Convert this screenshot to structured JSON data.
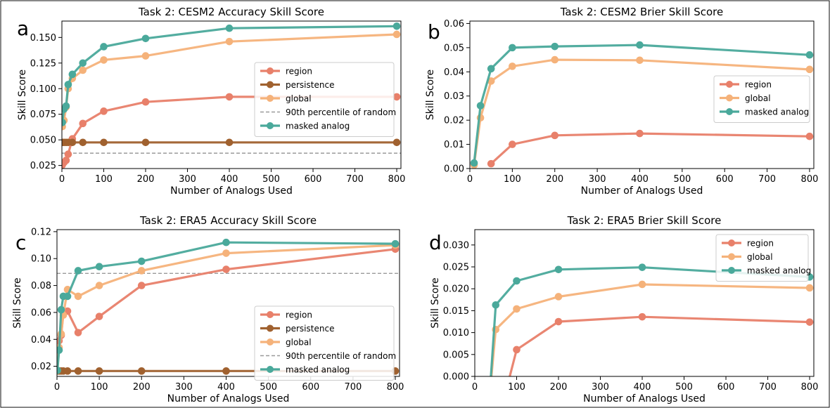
{
  "chart_data": [
    {
      "panel_letter": "a",
      "type": "line",
      "title": "Task 2: CESM2 Accuracy Skill Score",
      "xlabel": "Number of Analogs Used",
      "ylabel": "Skill Score",
      "xlim": [
        0,
        810
      ],
      "ylim": [
        0.022,
        0.166
      ],
      "xticks": [
        0,
        100,
        200,
        300,
        400,
        500,
        600,
        700,
        800
      ],
      "yticks": [
        0.025,
        0.05,
        0.075,
        0.1,
        0.125,
        0.15
      ],
      "ytick_labels": [
        "0.025",
        "0.050",
        "0.075",
        "0.100",
        "0.125",
        "0.150"
      ],
      "legend_position": "center-right",
      "legend": [
        "region",
        "persistence",
        "global",
        "90th percentile of random",
        "masked analog"
      ],
      "reference_line": {
        "name": "90th percentile of random",
        "value": 0.037
      },
      "series": [
        {
          "name": "region",
          "color": "#e8806a",
          "x": [
            1,
            5,
            10,
            15,
            25,
            50,
            100,
            200,
            400,
            800
          ],
          "y": [
            0.0255,
            0.028,
            0.03,
            0.036,
            0.051,
            0.066,
            0.078,
            0.087,
            0.092,
            0.092
          ]
        },
        {
          "name": "persistence",
          "color": "#a0612f",
          "x": [
            1,
            5,
            10,
            15,
            25,
            50,
            100,
            200,
            400,
            800
          ],
          "y": [
            0.0475,
            0.0475,
            0.0475,
            0.0475,
            0.0475,
            0.0475,
            0.0475,
            0.0475,
            0.0475,
            0.0475
          ]
        },
        {
          "name": "global",
          "color": "#f5b27a",
          "x": [
            1,
            5,
            10,
            15,
            25,
            50,
            100,
            200,
            400,
            800
          ],
          "y": [
            0.063,
            0.069,
            0.082,
            0.1,
            0.11,
            0.118,
            0.128,
            0.132,
            0.146,
            0.153
          ]
        },
        {
          "name": "masked analog",
          "color": "#4aa99b",
          "x": [
            1,
            5,
            10,
            15,
            25,
            50,
            100,
            200,
            400,
            800
          ],
          "y": [
            0.067,
            0.08,
            0.083,
            0.104,
            0.114,
            0.125,
            0.141,
            0.149,
            0.159,
            0.161
          ]
        }
      ]
    },
    {
      "panel_letter": "b",
      "type": "line",
      "title": "Task 2: CESM2 Brier Skill Score",
      "xlabel": "Number of Analogs Used",
      "ylabel": "Skill Score",
      "xlim": [
        0,
        810
      ],
      "ylim": [
        0,
        0.061
      ],
      "xticks": [
        0,
        100,
        200,
        300,
        400,
        500,
        600,
        700,
        800
      ],
      "yticks": [
        0,
        0.01,
        0.02,
        0.03,
        0.04,
        0.05,
        0.06
      ],
      "ytick_labels": [
        "0.00",
        "0.01",
        "0.02",
        "0.03",
        "0.04",
        "0.05",
        "0.06"
      ],
      "legend_position": "center-right",
      "legend": [
        "region",
        "global",
        "masked analog"
      ],
      "series": [
        {
          "name": "region",
          "color": "#e8806a",
          "x": [
            50,
            100,
            200,
            400,
            800
          ],
          "y": [
            0.002,
            0.01,
            0.0137,
            0.0145,
            0.0133
          ]
        },
        {
          "name": "global",
          "color": "#f5b27a",
          "x": [
            10,
            25,
            50,
            100,
            200,
            400,
            800
          ],
          "y": [
            0.0015,
            0.021,
            0.0362,
            0.0423,
            0.045,
            0.0448,
            0.041
          ]
        },
        {
          "name": "masked analog",
          "color": "#4aa99b",
          "x": [
            10,
            25,
            50,
            100,
            200,
            400,
            800
          ],
          "y": [
            0.0023,
            0.026,
            0.0413,
            0.05,
            0.0505,
            0.0511,
            0.047
          ]
        }
      ]
    },
    {
      "panel_letter": "c",
      "type": "line",
      "title": "Task 2: ERA5 Accuracy Skill Score",
      "xlabel": "Number of Analogs Used",
      "ylabel": "Skill Score",
      "xlim": [
        0,
        810
      ],
      "ylim": [
        0.0125,
        0.1215
      ],
      "xticks": [
        0,
        100,
        200,
        300,
        400,
        500,
        600,
        700,
        800
      ],
      "yticks": [
        0.02,
        0.04,
        0.06,
        0.08,
        0.1,
        0.12
      ],
      "ytick_labels": [
        "0.02",
        "0.04",
        "0.06",
        "0.08",
        "0.10",
        "0.12"
      ],
      "legend_position": "lower-right",
      "legend": [
        "region",
        "persistence",
        "global",
        "90th percentile of random",
        "masked analog"
      ],
      "reference_line": {
        "name": "90th percentile of random",
        "value": 0.089
      },
      "series": [
        {
          "name": "region",
          "color": "#e8806a",
          "x": [
            1,
            5,
            10,
            15,
            25,
            50,
            100,
            200,
            400,
            800
          ],
          "y": [
            0.017,
            0.039,
            0.043,
            0.06,
            0.061,
            0.045,
            0.057,
            0.08,
            0.092,
            0.107
          ]
        },
        {
          "name": "persistence",
          "color": "#a0612f",
          "x": [
            1,
            5,
            10,
            15,
            25,
            50,
            100,
            200,
            400,
            800
          ],
          "y": [
            0.0165,
            0.0165,
            0.0165,
            0.0165,
            0.0165,
            0.0165,
            0.0165,
            0.0165,
            0.0165,
            0.0165
          ]
        },
        {
          "name": "global",
          "color": "#f5b27a",
          "x": [
            1,
            5,
            10,
            15,
            25,
            50,
            100,
            200,
            400,
            800
          ],
          "y": [
            0.017,
            0.034,
            0.044,
            0.058,
            0.077,
            0.072,
            0.08,
            0.091,
            0.104,
            0.11
          ]
        },
        {
          "name": "masked analog",
          "color": "#4aa99b",
          "x": [
            1,
            5,
            10,
            15,
            25,
            50,
            100,
            200,
            400,
            800
          ],
          "y": [
            0.017,
            0.032,
            0.062,
            0.072,
            0.072,
            0.091,
            0.094,
            0.098,
            0.112,
            0.111
          ]
        }
      ]
    },
    {
      "panel_letter": "d",
      "type": "line",
      "title": "Task 2: ERA5 Brier Skill Score",
      "xlabel": "Number of Analogs Used",
      "ylabel": "Skill Score",
      "xlim": [
        0,
        810
      ],
      "ylim": [
        0,
        0.0335
      ],
      "xticks": [
        0,
        100,
        200,
        300,
        400,
        500,
        600,
        700,
        800
      ],
      "yticks": [
        0,
        0.005,
        0.01,
        0.015,
        0.02,
        0.025,
        0.03
      ],
      "ytick_labels": [
        "0.000",
        "0.005",
        "0.010",
        "0.015",
        "0.020",
        "0.025",
        "0.030"
      ],
      "legend_position": "top-right",
      "legend": [
        "region",
        "global",
        "masked analog"
      ],
      "series": [
        {
          "name": "region",
          "color": "#e8806a",
          "x": [
            70,
            100,
            200,
            400,
            800
          ],
          "y": [
            -0.005,
            0.0061,
            0.0125,
            0.0136,
            0.0124
          ]
        },
        {
          "name": "global",
          "color": "#f5b27a",
          "x": [
            35,
            50,
            100,
            200,
            400,
            800
          ],
          "y": [
            -0.005,
            0.0107,
            0.0154,
            0.0182,
            0.021,
            0.0202
          ]
        },
        {
          "name": "masked analog",
          "color": "#4aa99b",
          "x": [
            35,
            50,
            100,
            200,
            400,
            800
          ],
          "y": [
            -0.005,
            0.0163,
            0.0218,
            0.0244,
            0.0249,
            0.0227
          ]
        }
      ]
    }
  ]
}
